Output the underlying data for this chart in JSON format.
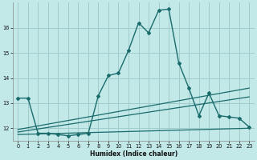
{
  "xlabel": "Humidex (Indice chaleur)",
  "bg_color": "#c2e8e8",
  "grid_color": "#a0cccc",
  "line_color": "#1a6b6b",
  "xlim": [
    -0.5,
    23.5
  ],
  "ylim": [
    11.5,
    17.0
  ],
  "xticks": [
    0,
    1,
    2,
    3,
    4,
    5,
    6,
    7,
    8,
    9,
    10,
    11,
    12,
    13,
    14,
    15,
    16,
    17,
    18,
    19,
    20,
    21,
    22,
    23
  ],
  "yticks": [
    12,
    13,
    14,
    15,
    16
  ],
  "curve_x": [
    0,
    1,
    2,
    3,
    4,
    5,
    6,
    7,
    8,
    9,
    10,
    11,
    12,
    13,
    14,
    15,
    16,
    17,
    18,
    19,
    20,
    21,
    22,
    23
  ],
  "curve_y": [
    13.2,
    13.2,
    11.8,
    11.8,
    11.75,
    11.7,
    11.75,
    11.8,
    13.3,
    14.1,
    14.2,
    15.1,
    16.2,
    15.8,
    16.7,
    16.75,
    14.6,
    13.6,
    12.5,
    13.4,
    12.5,
    12.45,
    12.4,
    12.05
  ],
  "trend1_x": [
    0,
    23
  ],
  "trend1_y": [
    11.95,
    13.6
  ],
  "trend2_x": [
    0,
    23
  ],
  "trend2_y": [
    11.85,
    13.25
  ],
  "trend3_x": [
    0,
    23
  ],
  "trend3_y": [
    11.75,
    12.0
  ]
}
